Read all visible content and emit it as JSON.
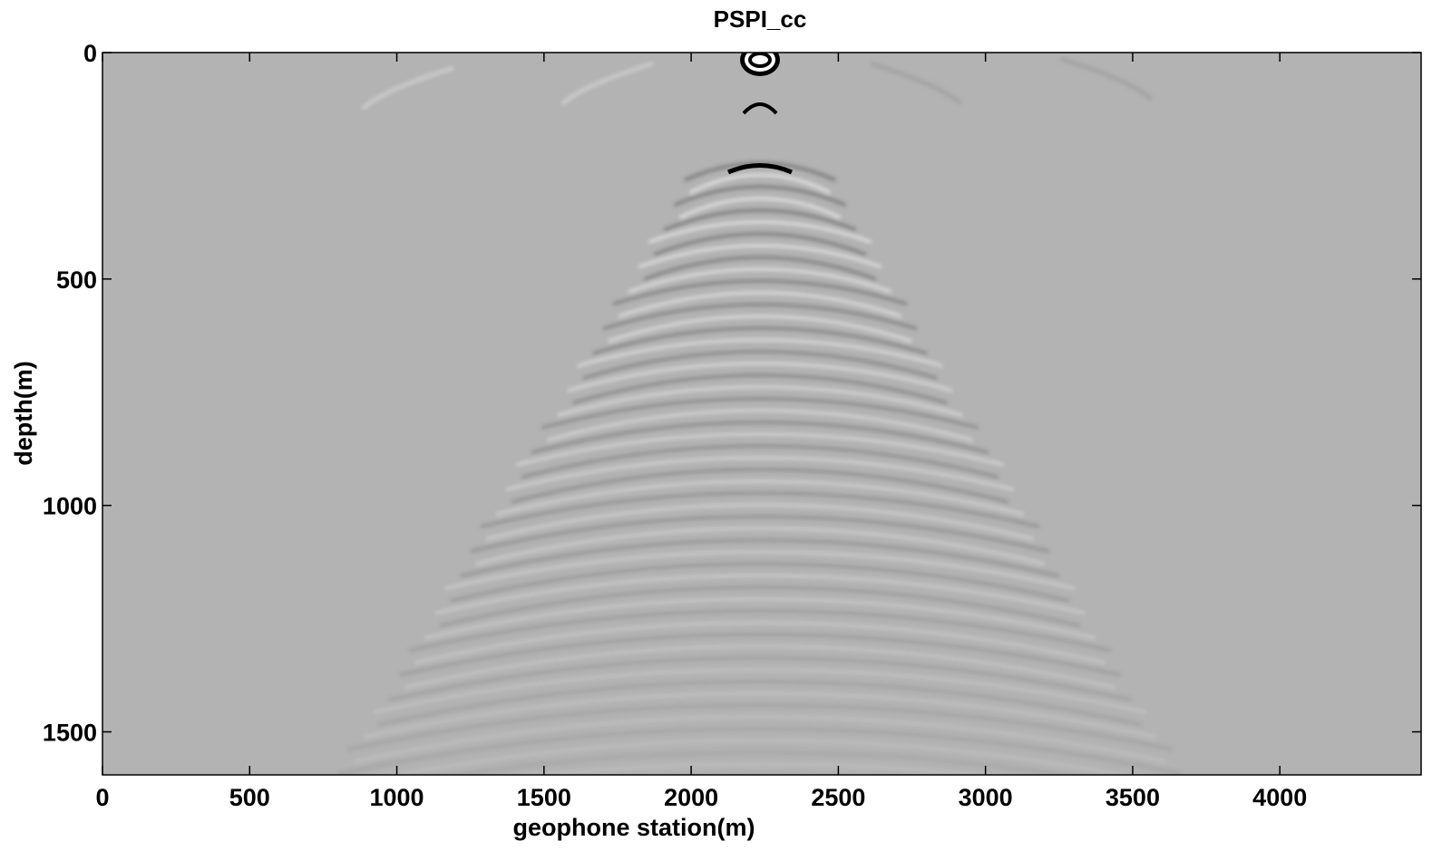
{
  "chart_data": {
    "type": "image",
    "title": "PSPI_cc",
    "xlabel": "geophone station(m)",
    "ylabel": "depth(m)",
    "xlim": [
      0,
      4480
    ],
    "ylim": [
      0,
      1595
    ],
    "y_inverted": true,
    "xticks": [
      0,
      500,
      1000,
      1500,
      2000,
      2500,
      3000,
      3500,
      4000
    ],
    "yticks": [
      0,
      500,
      1000,
      1500
    ]
  }
}
